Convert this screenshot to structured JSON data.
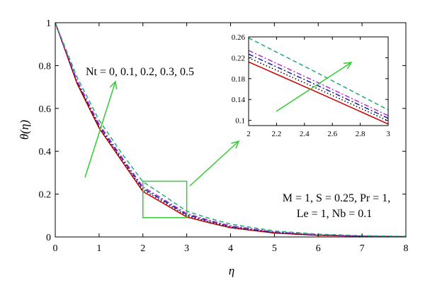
{
  "chart_data": {
    "type": "line",
    "xlabel": "η",
    "ylabel": "θ(η)",
    "xlim": [
      0,
      8
    ],
    "ylim": [
      0,
      1
    ],
    "xticks": [
      "0",
      "1",
      "2",
      "3",
      "4",
      "5",
      "6",
      "7",
      "8"
    ],
    "yticks": [
      "0",
      "0.2",
      "0.4",
      "0.6",
      "0.8",
      "1"
    ],
    "grid": false,
    "series": [
      {
        "nt": 0,
        "color": "#cc0000",
        "dash": "solid",
        "x": [
          0,
          0.5,
          1,
          1.5,
          2,
          2.5,
          3,
          3.5,
          4,
          5,
          6,
          7,
          8
        ],
        "y": [
          1,
          0.715,
          0.508,
          0.36,
          0.212,
          0.153,
          0.093,
          0.067,
          0.043,
          0.018,
          0.0075,
          0.003,
          0.0012
        ]
      },
      {
        "nt": 0.1,
        "color": "#000000",
        "dash": "dotted",
        "x": [
          0,
          0.5,
          1,
          1.5,
          2,
          2.5,
          3,
          3.5,
          4,
          5,
          6,
          7,
          8
        ],
        "y": [
          1,
          0.72,
          0.514,
          0.366,
          0.22,
          0.16,
          0.099,
          0.071,
          0.046,
          0.02,
          0.0085,
          0.0035,
          0.0014
        ]
      },
      {
        "nt": 0.2,
        "color": "#1a1aaa",
        "dash": "dashdot",
        "x": [
          0,
          0.5,
          1,
          1.5,
          2,
          2.5,
          3,
          3.5,
          4,
          5,
          6,
          7,
          8
        ],
        "y": [
          1,
          0.725,
          0.52,
          0.372,
          0.227,
          0.166,
          0.104,
          0.075,
          0.049,
          0.022,
          0.0095,
          0.004,
          0.0016
        ]
      },
      {
        "nt": 0.3,
        "color": "#b233cc",
        "dash": "dashdot",
        "x": [
          0,
          0.5,
          1,
          1.5,
          2,
          2.5,
          3,
          3.5,
          4,
          5,
          6,
          7,
          8
        ],
        "y": [
          1,
          0.73,
          0.527,
          0.378,
          0.234,
          0.172,
          0.109,
          0.079,
          0.052,
          0.024,
          0.0105,
          0.0045,
          0.0018
        ]
      },
      {
        "nt": 0.5,
        "color": "#22aa77",
        "dash": "dashed",
        "x": [
          0,
          0.5,
          1,
          1.5,
          2,
          2.5,
          3,
          3.5,
          4,
          5,
          6,
          7,
          8
        ],
        "y": [
          1,
          0.745,
          0.545,
          0.395,
          0.258,
          0.19,
          0.12,
          0.088,
          0.06,
          0.028,
          0.013,
          0.006,
          0.0025
        ]
      }
    ],
    "inset": {
      "xlim": [
        2,
        3
      ],
      "ylim": [
        0.09,
        0.26
      ],
      "xticks": [
        "2",
        "2.2",
        "2.4",
        "2.6",
        "2.8",
        "3"
      ],
      "yticks": [
        "0.1",
        "0.14",
        "0.18",
        "0.22",
        "0.26"
      ]
    },
    "annotations": {
      "nt_label": "Nt = 0, 0.1, 0.2, 0.3, 0.5",
      "params_line1": "M = 1, S = 0.25, Pr = 1,",
      "params_line2": "Le = 1, Nb = 0.1"
    }
  },
  "colors": {
    "arrow": "#33cc33",
    "zoom_box": "#33cc33"
  }
}
